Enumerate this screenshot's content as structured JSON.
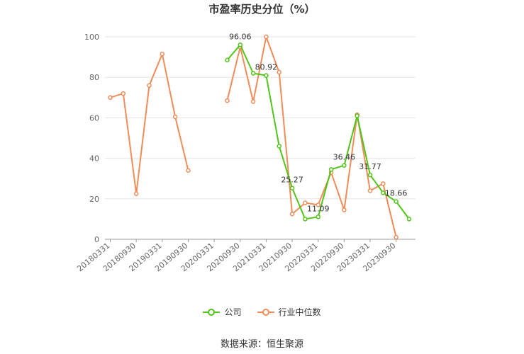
{
  "chart_data": {
    "type": "line",
    "title": "市盈率历史分位（%）",
    "source": "数据来源：恒生聚源",
    "ylim": [
      0,
      100
    ],
    "yticks": [
      0,
      20,
      40,
      60,
      80,
      100
    ],
    "grid": true,
    "legend_position": "bottom",
    "x": [
      "20180331",
      "20180630",
      "20180930",
      "20181231",
      "20190331",
      "20190630",
      "20190930",
      "20191231",
      "20200331",
      "20200630",
      "20200930",
      "20201231",
      "20210331",
      "20210630",
      "20210930",
      "20211231",
      "20220331",
      "20220630",
      "20220930",
      "20221231",
      "20230331",
      "20230630",
      "20230930",
      "20231231"
    ],
    "xtick_labels": [
      "20180331",
      "20180930",
      "20190331",
      "20190930",
      "20200331",
      "20200930",
      "20210331",
      "20210930",
      "20220331",
      "20220930",
      "20230331",
      "20230930"
    ],
    "series": [
      {
        "name": "公司",
        "color": "#52c41a",
        "values": [
          null,
          null,
          null,
          null,
          null,
          null,
          null,
          null,
          null,
          88.5,
          96.06,
          82.0,
          80.92,
          46.0,
          25.27,
          10.0,
          11.09,
          34.5,
          36.46,
          61.0,
          31.77,
          23.0,
          18.66,
          10.0
        ]
      },
      {
        "name": "行业中位数",
        "color": "#f08c5a",
        "values": [
          70.0,
          72.0,
          22.5,
          76.0,
          91.5,
          60.5,
          34.0,
          null,
          null,
          68.5,
          95.0,
          68.0,
          100.0,
          82.5,
          12.5,
          18.0,
          17.0,
          33.0,
          14.5,
          61.5,
          24.0,
          27.5,
          1.0,
          null
        ]
      }
    ],
    "annotations": [
      {
        "series": 0,
        "index": 10,
        "text": "96.06"
      },
      {
        "series": 0,
        "index": 12,
        "text": "80.92"
      },
      {
        "series": 0,
        "index": 14,
        "text": "25.27"
      },
      {
        "series": 0,
        "index": 16,
        "text": "11.09"
      },
      {
        "series": 0,
        "index": 18,
        "text": "36.46"
      },
      {
        "series": 0,
        "index": 20,
        "text": "31.77"
      },
      {
        "series": 0,
        "index": 22,
        "text": "18.66"
      }
    ]
  }
}
